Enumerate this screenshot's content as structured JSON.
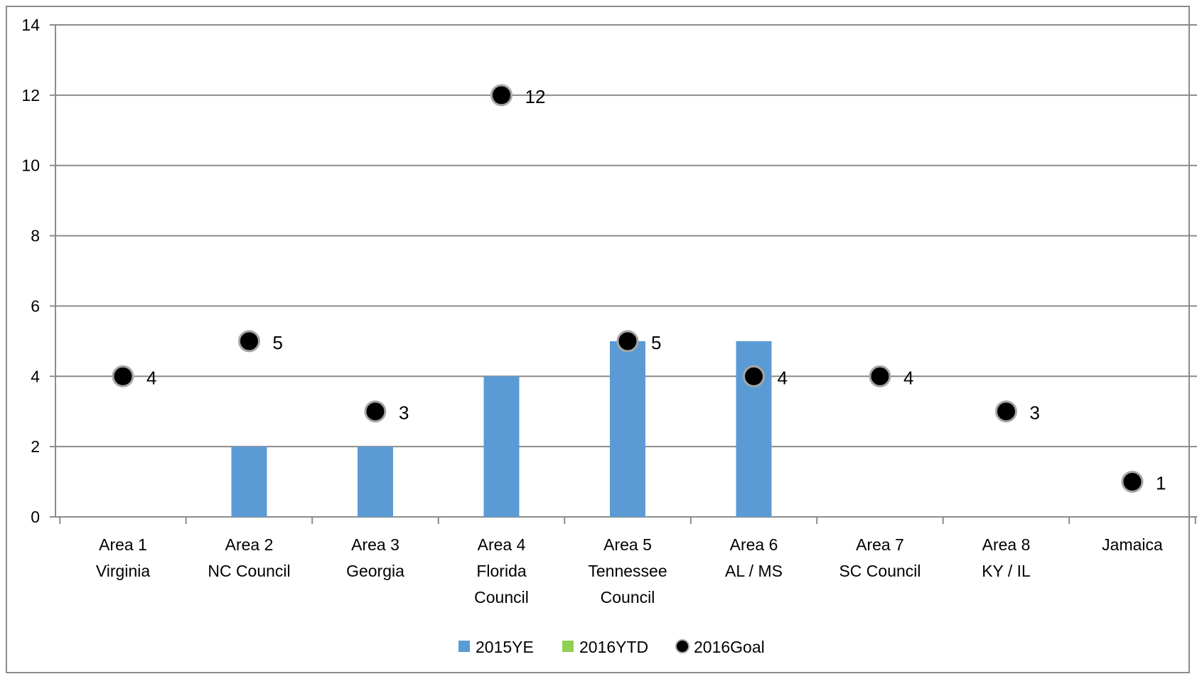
{
  "chart_data": {
    "type": "bar",
    "categories": [
      [
        "Area 1",
        "Virginia"
      ],
      [
        "Area 2",
        "NC Council"
      ],
      [
        "Area 3",
        "Georgia"
      ],
      [
        "Area 4",
        "Florida",
        "Council"
      ],
      [
        "Area 5",
        "Tennessee",
        "Council"
      ],
      [
        "Area 6",
        "AL / MS"
      ],
      [
        "Area 7",
        "SC Council"
      ],
      [
        "Area 8",
        "KY / IL"
      ],
      [
        "Jamaica"
      ]
    ],
    "series": [
      {
        "name": "2015YE",
        "kind": "bar",
        "color": "#5b9bd5",
        "values": [
          0,
          2,
          2,
          4,
          5,
          5,
          0,
          0,
          0
        ]
      },
      {
        "name": "2016YTD",
        "kind": "bar",
        "color": "#92d050",
        "values": [
          0,
          0,
          0,
          0,
          0,
          0,
          0,
          0,
          0
        ]
      },
      {
        "name": "2016Goal",
        "kind": "scatter",
        "color": "#000000",
        "values": [
          4,
          5,
          3,
          12,
          5,
          4,
          4,
          3,
          1
        ],
        "data_labels": true
      }
    ],
    "ylim": [
      0,
      14
    ],
    "yticks": [
      0,
      2,
      4,
      6,
      8,
      10,
      12,
      14
    ],
    "grid": true,
    "legend": "bottom",
    "title": "",
    "xlabel": "",
    "ylabel": ""
  }
}
